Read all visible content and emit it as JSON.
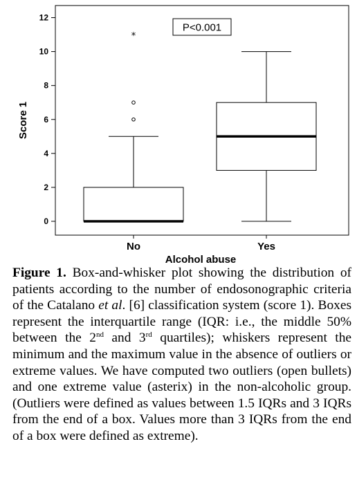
{
  "chart_data": {
    "type": "boxplot",
    "ylabel": "Score 1",
    "xlabel": "Alcohol abuse",
    "ylim": [
      0,
      12
    ],
    "yticks": [
      0,
      2,
      4,
      6,
      8,
      10,
      12
    ],
    "annotation": "P<0.001",
    "grid": false,
    "categories": [
      "No",
      "Yes"
    ],
    "boxes": [
      {
        "category": "No",
        "min": 0,
        "q1": 0,
        "median": 0,
        "q3": 2,
        "max": 5,
        "outliers": [
          6,
          7
        ],
        "extremes": [
          11
        ]
      },
      {
        "category": "Yes",
        "min": 0,
        "q1": 3,
        "median": 5,
        "q3": 7,
        "max": 10,
        "outliers": [],
        "extremes": []
      }
    ]
  },
  "caption": {
    "label": "Figure 1.",
    "part1": " Box-and-whisker plot showing the distribution of patients according to the number of endosonographic criteria of the Catalano ",
    "etal": "et al",
    "part2": ". [6] classification system (score 1). Boxes represent the interquartile range (IQR: i.e., the middle 50% between the 2",
    "sup1": "nd",
    "part3": " and 3",
    "sup2": "rd",
    "part4": " quartiles); whiskers represent the minimum and the maximum value in the absence of outliers or extreme values. We have computed two outliers (open bullets) and one extreme value (asterix) in the non-alcoholic group. (Outliers were defined as values between 1.5 IQRs and 3 IQRs from the end of a box. Values more than 3 IQRs from the end of a box were defined as extreme)."
  }
}
